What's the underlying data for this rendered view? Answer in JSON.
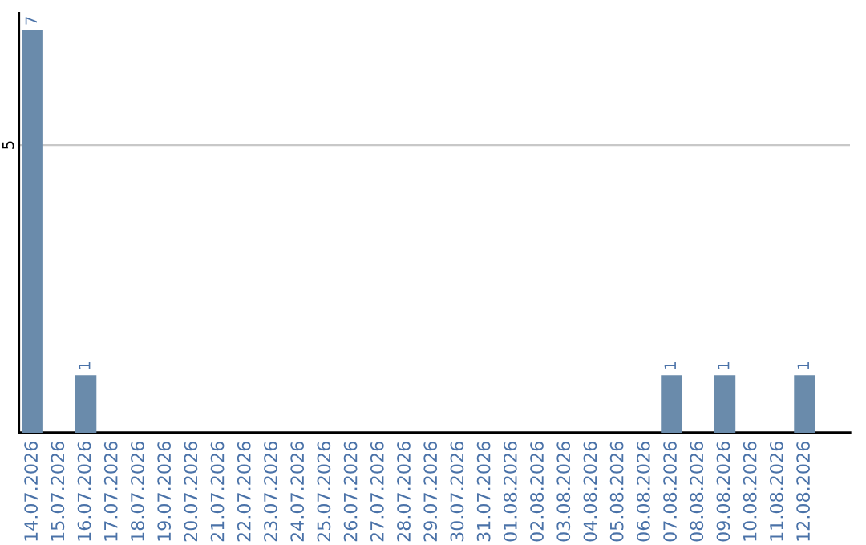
{
  "chart_data": {
    "type": "bar",
    "categories": [
      "14.07.2026",
      "15.07.2026",
      "16.07.2026",
      "17.07.2026",
      "18.07.2026",
      "19.07.2026",
      "20.07.2026",
      "21.07.2026",
      "22.07.2026",
      "23.07.2026",
      "24.07.2026",
      "25.07.2026",
      "26.07.2026",
      "27.07.2026",
      "28.07.2026",
      "29.07.2026",
      "30.07.2026",
      "31.07.2026",
      "01.08.2026",
      "02.08.2026",
      "03.08.2026",
      "04.08.2026",
      "05.08.2026",
      "06.08.2026",
      "07.08.2026",
      "08.08.2026",
      "09.08.2026",
      "10.08.2026",
      "11.08.2026",
      "12.08.2026"
    ],
    "values": [
      7,
      0,
      1,
      0,
      0,
      0,
      0,
      0,
      0,
      0,
      0,
      0,
      0,
      0,
      0,
      0,
      0,
      0,
      0,
      0,
      0,
      0,
      0,
      0,
      1,
      0,
      1,
      0,
      0,
      1
    ],
    "value_labels": [
      "7",
      null,
      "1",
      null,
      null,
      null,
      null,
      null,
      null,
      null,
      null,
      null,
      null,
      null,
      null,
      null,
      null,
      null,
      null,
      null,
      null,
      null,
      null,
      null,
      "1",
      null,
      "1",
      null,
      null,
      "1"
    ],
    "color": "#6a8bab",
    "ylim": [
      0,
      7.3
    ],
    "yticks": [
      5
    ],
    "grid": "y"
  }
}
